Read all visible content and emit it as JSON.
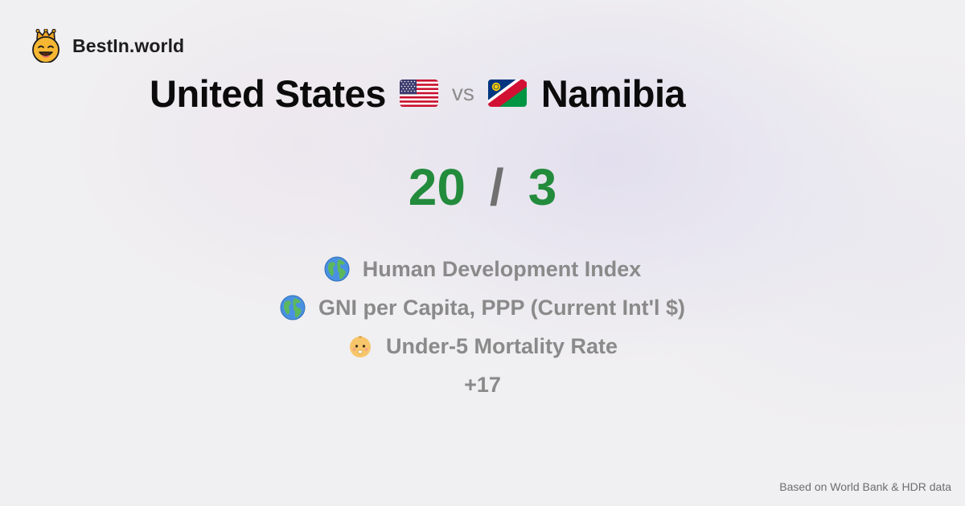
{
  "brand": {
    "name": "BestIn.world",
    "logo_icon": "crown-smiley-icon"
  },
  "comparison": {
    "left_country": "United States",
    "left_flag": "us-flag-icon",
    "vs_label": "vs",
    "right_country": "Namibia",
    "right_flag": "namibia-flag-icon"
  },
  "score": {
    "left": "20",
    "separator": "/",
    "right": "3",
    "color": "#238b3c"
  },
  "metrics": [
    {
      "icon": "globe-icon",
      "label": "Human Development Index"
    },
    {
      "icon": "globe-icon",
      "label": "GNI per Capita, PPP (Current Int'l $)"
    },
    {
      "icon": "baby-icon",
      "label": "Under-5 Mortality Rate"
    }
  ],
  "more_label": "+17",
  "footer": {
    "source": "Based on World Bank & HDR data"
  }
}
